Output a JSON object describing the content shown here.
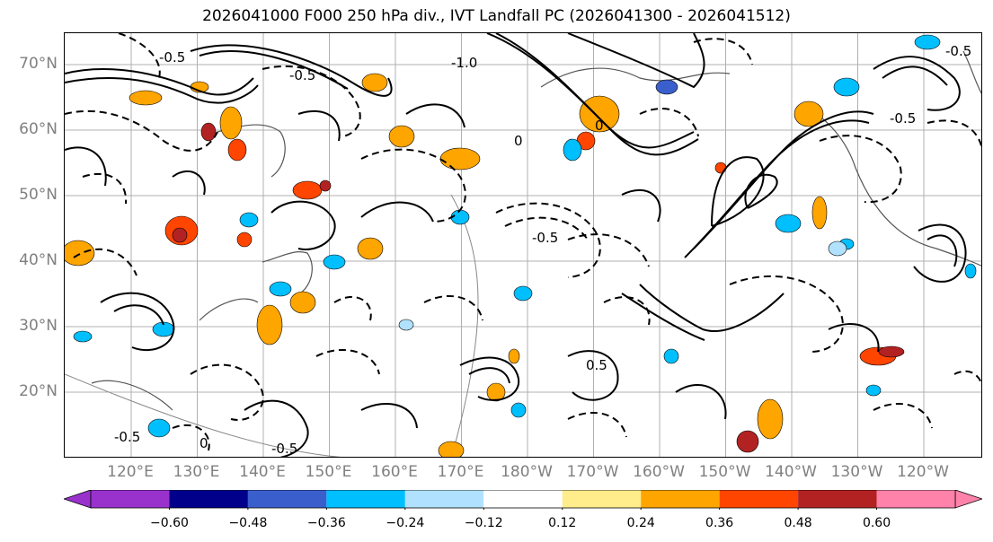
{
  "title": "2026041000 F000 250 hPa div., IVT Landfall PC (2026041300 - 2026041512)",
  "map": {
    "lat_labels": [
      "70°N",
      "60°N",
      "50°N",
      "40°N",
      "30°N",
      "20°N"
    ],
    "lon_labels": [
      "120°E",
      "130°E",
      "140°E",
      "150°E",
      "160°E",
      "170°E",
      "180°W",
      "170°W",
      "160°W",
      "150°W",
      "140°W",
      "130°W",
      "120°W"
    ],
    "contour_labels": [
      "-0.5",
      "-0.5",
      "0",
      "-0.5",
      "-1.0",
      "-0.5",
      "0",
      "-0.5",
      "0.5",
      "-0.5",
      "0",
      "-0.5"
    ],
    "colors": {
      "background": "#ffffff",
      "grid": "#b0b0b0",
      "coast": "#555555",
      "contour": "#000000"
    }
  },
  "colorbar": {
    "colors": [
      "#9932cc",
      "#00008b",
      "#3a5fcd",
      "#00bfff",
      "#b0e2ff",
      "#ffffff",
      "#ffec8b",
      "#ffa500",
      "#ff4500",
      "#b22222",
      "#ff82ab"
    ],
    "tick_labels": [
      "−0.60",
      "−0.48",
      "−0.36",
      "−0.24",
      "−0.12",
      "0.12",
      "0.24",
      "0.36",
      "0.48",
      "0.60"
    ],
    "extend": "both"
  }
}
